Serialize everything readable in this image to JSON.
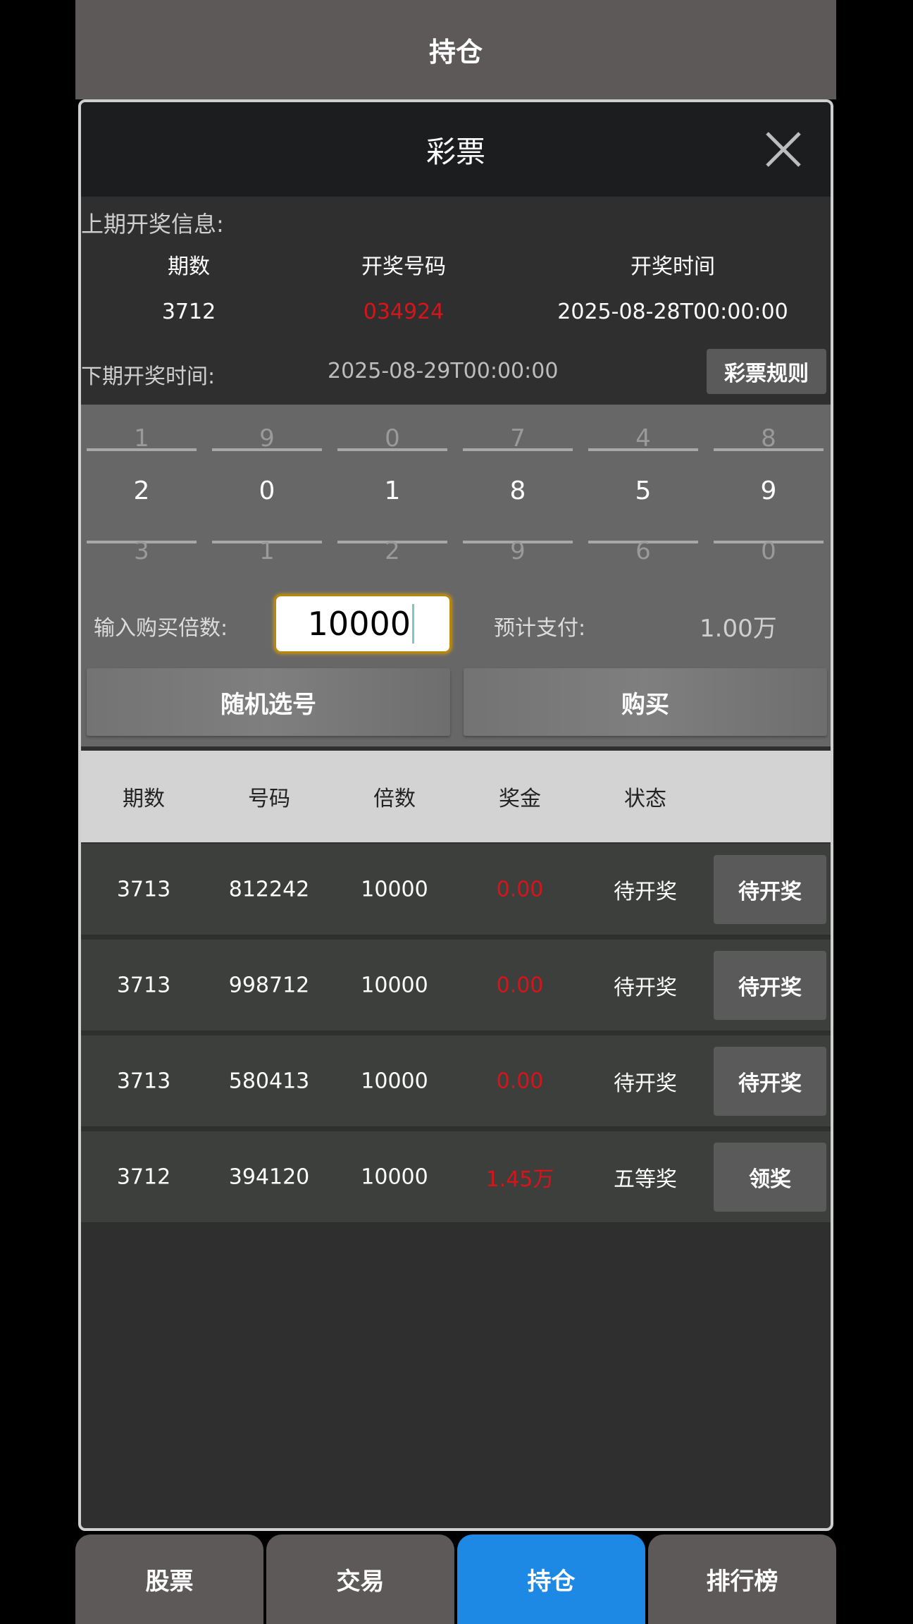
{
  "header": {
    "title": "持仓"
  },
  "modal": {
    "title": "彩票",
    "close_icon": "close-icon",
    "last_draw": {
      "label": "上期开奖信息:",
      "headers": [
        "期数",
        "开奖号码",
        "开奖时间"
      ],
      "issue": "3712",
      "number": "034924",
      "time": "2025-08-28T00:00:00"
    },
    "next_draw": {
      "label": "下期开奖时间:",
      "time": "2025-08-29T00:00:00"
    },
    "rules_button": "彩票规则",
    "picker": {
      "columns": [
        {
          "prev": "1",
          "current": "2",
          "next": "3"
        },
        {
          "prev": "9",
          "current": "0",
          "next": "1"
        },
        {
          "prev": "0",
          "current": "1",
          "next": "2"
        },
        {
          "prev": "7",
          "current": "8",
          "next": "9"
        },
        {
          "prev": "4",
          "current": "5",
          "next": "6"
        },
        {
          "prev": "8",
          "current": "9",
          "next": "0"
        }
      ]
    },
    "multiplier": {
      "label": "输入购买倍数:",
      "value": "10000"
    },
    "estimated": {
      "label": "预计支付:",
      "value": "1.00万"
    },
    "random_button": "随机选号",
    "buy_button": "购买",
    "table": {
      "headers": [
        "期数",
        "号码",
        "倍数",
        "奖金",
        "状态"
      ],
      "rows": [
        {
          "issue": "3713",
          "number": "812242",
          "multiple": "10000",
          "prize": "0.00",
          "status": "待开奖",
          "action": "待开奖"
        },
        {
          "issue": "3713",
          "number": "998712",
          "multiple": "10000",
          "prize": "0.00",
          "status": "待开奖",
          "action": "待开奖"
        },
        {
          "issue": "3713",
          "number": "580413",
          "multiple": "10000",
          "prize": "0.00",
          "status": "待开奖",
          "action": "待开奖"
        },
        {
          "issue": "3712",
          "number": "394120",
          "multiple": "10000",
          "prize": "1.45万",
          "status": "五等奖",
          "action": "领奖"
        }
      ]
    }
  },
  "tabs": [
    {
      "label": "股票"
    },
    {
      "label": "交易"
    },
    {
      "label": "持仓",
      "active": true
    },
    {
      "label": "排行榜"
    }
  ],
  "colors": {
    "accent": "#1e88e5",
    "prize_red": "#d8141a",
    "input_border": "#b8860b"
  }
}
